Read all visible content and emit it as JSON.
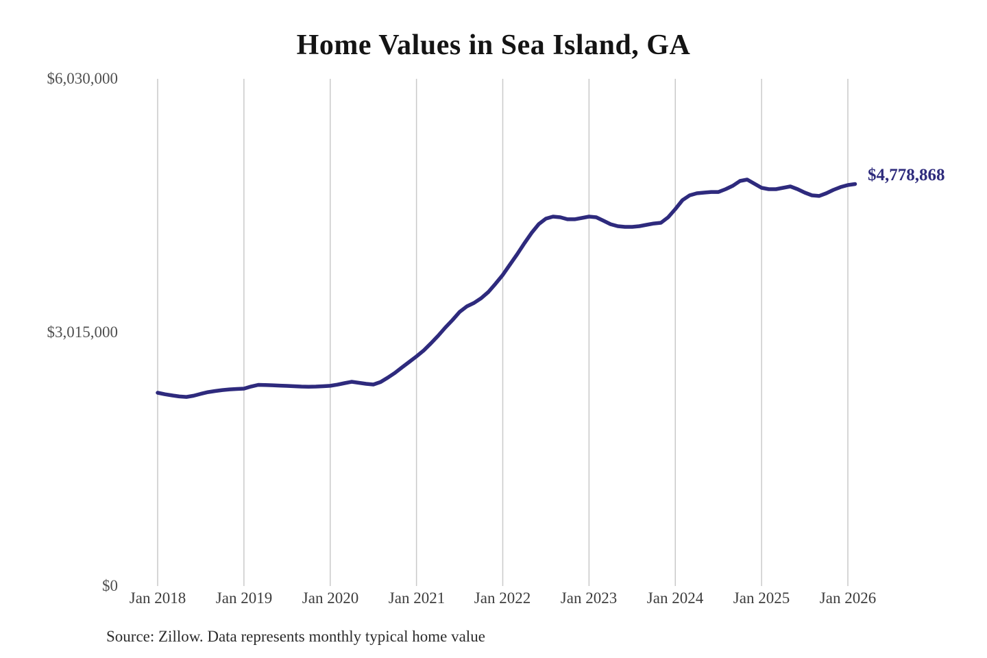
{
  "chart": {
    "title": "Home Values in Sea Island, GA",
    "latest_value_label": "$4,778,868",
    "source": "Source: Zillow. Data represents monthly typical home value",
    "y_axis": [
      {
        "label": "$6,030,000",
        "value": 6030000
      },
      {
        "label": "$3,015,000",
        "value": 3015000
      },
      {
        "label": "$0",
        "value": 0
      }
    ],
    "x_axis": [
      "Jan 2018",
      "Jan 2019",
      "Jan 2020",
      "Jan 2021",
      "Jan 2022",
      "Jan 2023",
      "Jan 2024",
      "Jan 2025",
      "Jan 2026"
    ],
    "colors": {
      "line": "#2e2a7d",
      "grid": "#c9c9c9",
      "title": "#141414",
      "latest_value": "#2e2b7c"
    }
  },
  "chart_data": {
    "type": "line",
    "title": "Home Values in Sea Island, GA",
    "frequency": "monthly",
    "x_start": "2018-01",
    "x_end": "2026-02",
    "xlabel": "",
    "ylabel": "",
    "ylim": [
      0,
      6030000
    ],
    "yticks": [
      0,
      3015000,
      6030000
    ],
    "ytick_labels": [
      "$0",
      "$3,015,000",
      "$6,030,000"
    ],
    "x_tick_labels": [
      "Jan 2018",
      "Jan 2019",
      "Jan 2020",
      "Jan 2021",
      "Jan 2022",
      "Jan 2023",
      "Jan 2024",
      "Jan 2025",
      "Jan 2026"
    ],
    "grid": "vertical-only",
    "legend": "none",
    "final_value": 4778868,
    "final_value_label": "$4,778,868",
    "series": [
      {
        "name": "Typical home value",
        "values": [
          2298000,
          2280000,
          2266000,
          2254000,
          2248000,
          2262000,
          2285000,
          2305000,
          2318000,
          2330000,
          2338000,
          2343000,
          2347000,
          2372000,
          2392000,
          2390000,
          2387000,
          2383000,
          2379000,
          2375000,
          2371000,
          2370000,
          2371000,
          2375000,
          2380000,
          2394000,
          2412000,
          2428000,
          2416000,
          2404000,
          2396000,
          2425000,
          2477000,
          2534000,
          2600000,
          2665000,
          2730000,
          2800000,
          2885000,
          2974000,
          3072000,
          3162000,
          3259000,
          3325000,
          3365000,
          3422000,
          3496000,
          3594000,
          3699000,
          3822000,
          3944000,
          4074000,
          4197000,
          4302000,
          4368000,
          4392000,
          4384000,
          4360000,
          4360000,
          4376000,
          4392000,
          4384000,
          4343000,
          4302000,
          4278000,
          4270000,
          4270000,
          4278000,
          4294000,
          4310000,
          4319000,
          4384000,
          4482000,
          4588000,
          4645000,
          4669000,
          4677000,
          4685000,
          4685000,
          4718000,
          4759000,
          4816000,
          4832000,
          4783000,
          4734000,
          4718000,
          4718000,
          4734000,
          4751000,
          4718000,
          4677000,
          4645000,
          4637000,
          4669000,
          4710000,
          4743000,
          4767000,
          4778868
        ]
      }
    ]
  }
}
